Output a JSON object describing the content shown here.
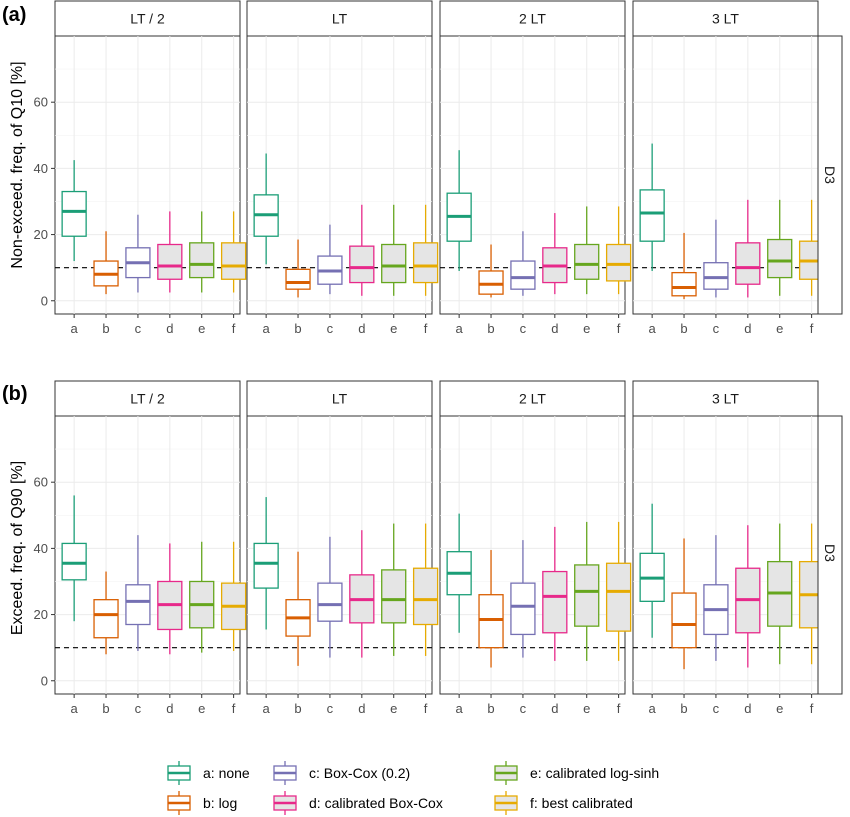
{
  "figure": {
    "panel_tags": [
      "(a)",
      "(b)"
    ],
    "colors": {
      "a": "#1b9e77",
      "b": "#d95f02",
      "c": "#7570b3",
      "d": "#e7298a",
      "e": "#66a61e",
      "f": "#e6ab02",
      "fill_calibrated": "#e5e5e5"
    }
  },
  "chart_data": [
    {
      "type": "boxplot",
      "tag": "(a)",
      "ylabel": "Non-exceed. freq. of Q10 [%]",
      "ylim": [
        -4,
        80
      ],
      "yticks": [
        0,
        20,
        40,
        60
      ],
      "reference_line": 10,
      "row_strip": "D3",
      "categories": [
        "a",
        "b",
        "c",
        "d",
        "e",
        "f"
      ],
      "facets": [
        {
          "label": "LT / 2",
          "boxes": [
            {
              "min": 12,
              "q1": 19.5,
              "median": 27,
              "q3": 33,
              "max": 42.5
            },
            {
              "min": 2,
              "q1": 4.5,
              "median": 8,
              "q3": 12,
              "max": 21
            },
            {
              "min": 2.5,
              "q1": 7,
              "median": 11.5,
              "q3": 16,
              "max": 26
            },
            {
              "min": 2.5,
              "q1": 6.5,
              "median": 10.5,
              "q3": 17,
              "max": 27
            },
            {
              "min": 2.5,
              "q1": 7,
              "median": 11,
              "q3": 17.5,
              "max": 27
            },
            {
              "min": 2.5,
              "q1": 6.5,
              "median": 10.5,
              "q3": 17.5,
              "max": 27
            }
          ]
        },
        {
          "label": "LT",
          "boxes": [
            {
              "min": 11,
              "q1": 19.5,
              "median": 26,
              "q3": 32,
              "max": 44.5
            },
            {
              "min": 1,
              "q1": 3.5,
              "median": 5.5,
              "q3": 9.5,
              "max": 18.5
            },
            {
              "min": 2,
              "q1": 5,
              "median": 9,
              "q3": 13.5,
              "max": 23
            },
            {
              "min": 1.5,
              "q1": 5.5,
              "median": 10,
              "q3": 16.5,
              "max": 29
            },
            {
              "min": 1.5,
              "q1": 5.5,
              "median": 10.5,
              "q3": 17,
              "max": 29
            },
            {
              "min": 1.5,
              "q1": 5.5,
              "median": 10.5,
              "q3": 17.5,
              "max": 29
            }
          ]
        },
        {
          "label": "2 LT",
          "boxes": [
            {
              "min": 9,
              "q1": 18,
              "median": 25.5,
              "q3": 32.5,
              "max": 45.5
            },
            {
              "min": 1,
              "q1": 2,
              "median": 5,
              "q3": 9,
              "max": 17
            },
            {
              "min": 1.5,
              "q1": 3.5,
              "median": 7,
              "q3": 12,
              "max": 21
            },
            {
              "min": 2,
              "q1": 5.5,
              "median": 10.5,
              "q3": 16,
              "max": 26.5
            },
            {
              "min": 2,
              "q1": 6.5,
              "median": 11,
              "q3": 17,
              "max": 28.5
            },
            {
              "min": 2,
              "q1": 6,
              "median": 11,
              "q3": 17,
              "max": 28.5
            }
          ]
        },
        {
          "label": "3 LT",
          "boxes": [
            {
              "min": 9,
              "q1": 18,
              "median": 26.5,
              "q3": 33.5,
              "max": 47.5
            },
            {
              "min": 0.5,
              "q1": 1.5,
              "median": 4,
              "q3": 8.5,
              "max": 20.5
            },
            {
              "min": 1,
              "q1": 3.5,
              "median": 7,
              "q3": 11.5,
              "max": 24.5
            },
            {
              "min": 1,
              "q1": 5,
              "median": 10,
              "q3": 17.5,
              "max": 30.5
            },
            {
              "min": 1.5,
              "q1": 7,
              "median": 12,
              "q3": 18.5,
              "max": 30.5
            },
            {
              "min": 1.5,
              "q1": 6.5,
              "median": 12,
              "q3": 18,
              "max": 30.5
            }
          ]
        }
      ]
    },
    {
      "type": "boxplot",
      "tag": "(b)",
      "ylabel": "Exceed. freq. of Q90 [%]",
      "ylim": [
        -4,
        80
      ],
      "yticks": [
        0,
        20,
        40,
        60
      ],
      "reference_line": 10,
      "row_strip": "D3",
      "categories": [
        "a",
        "b",
        "c",
        "d",
        "e",
        "f"
      ],
      "facets": [
        {
          "label": "LT / 2",
          "boxes": [
            {
              "min": 18,
              "q1": 30.5,
              "median": 35.5,
              "q3": 41.5,
              "max": 56
            },
            {
              "min": 8,
              "q1": 13,
              "median": 20,
              "q3": 24.5,
              "max": 33
            },
            {
              "min": 9,
              "q1": 17,
              "median": 24,
              "q3": 29,
              "max": 44
            },
            {
              "min": 8,
              "q1": 15.5,
              "median": 23,
              "q3": 30,
              "max": 41.5
            },
            {
              "min": 8.5,
              "q1": 16,
              "median": 23,
              "q3": 30,
              "max": 42
            },
            {
              "min": 9,
              "q1": 15.5,
              "median": 22.5,
              "q3": 29.5,
              "max": 42
            }
          ]
        },
        {
          "label": "LT",
          "boxes": [
            {
              "min": 15.5,
              "q1": 28,
              "median": 35.5,
              "q3": 41.5,
              "max": 55.5
            },
            {
              "min": 4.5,
              "q1": 13.5,
              "median": 19,
              "q3": 24.5,
              "max": 39
            },
            {
              "min": 7,
              "q1": 18,
              "median": 23,
              "q3": 29.5,
              "max": 43.5
            },
            {
              "min": 7,
              "q1": 17.5,
              "median": 24.5,
              "q3": 32,
              "max": 45.5
            },
            {
              "min": 7.5,
              "q1": 17.5,
              "median": 24.5,
              "q3": 33.5,
              "max": 47.5
            },
            {
              "min": 7.5,
              "q1": 17,
              "median": 24.5,
              "q3": 34,
              "max": 47.5
            }
          ]
        },
        {
          "label": "2 LT",
          "boxes": [
            {
              "min": 14.5,
              "q1": 26,
              "median": 32.5,
              "q3": 39,
              "max": 50.5
            },
            {
              "min": 4,
              "q1": 10,
              "median": 18.5,
              "q3": 26,
              "max": 39.5
            },
            {
              "min": 7,
              "q1": 14,
              "median": 22.5,
              "q3": 29.5,
              "max": 42.5
            },
            {
              "min": 6,
              "q1": 14.5,
              "median": 25.5,
              "q3": 33,
              "max": 46.5
            },
            {
              "min": 6,
              "q1": 16.5,
              "median": 27,
              "q3": 35,
              "max": 48
            },
            {
              "min": 6,
              "q1": 15,
              "median": 27,
              "q3": 35.5,
              "max": 48
            }
          ]
        },
        {
          "label": "3 LT",
          "boxes": [
            {
              "min": 13,
              "q1": 24,
              "median": 31,
              "q3": 38.5,
              "max": 53.5
            },
            {
              "min": 3.5,
              "q1": 10,
              "median": 17,
              "q3": 26.5,
              "max": 43
            },
            {
              "min": 6,
              "q1": 14,
              "median": 21.5,
              "q3": 29,
              "max": 44
            },
            {
              "min": 4,
              "q1": 14.5,
              "median": 24.5,
              "q3": 34,
              "max": 47
            },
            {
              "min": 5,
              "q1": 16.5,
              "median": 26.5,
              "q3": 36,
              "max": 47.5
            },
            {
              "min": 5,
              "q1": 16,
              "median": 26,
              "q3": 36,
              "max": 47.5
            }
          ]
        }
      ]
    }
  ],
  "legend": {
    "items": [
      {
        "key": "a",
        "label": "a: none"
      },
      {
        "key": "b",
        "label": "b: log"
      },
      {
        "key": "c",
        "label": "c: Box-Cox (0.2)"
      },
      {
        "key": "d",
        "label": "d: calibrated Box-Cox"
      },
      {
        "key": "e",
        "label": "e: calibrated log-sinh"
      },
      {
        "key": "f",
        "label": "f: best calibrated"
      }
    ]
  }
}
